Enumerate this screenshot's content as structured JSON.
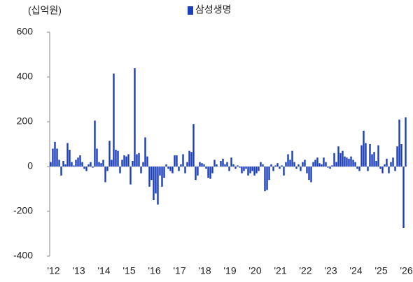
{
  "chart_data": {
    "type": "bar",
    "unit_label": "(십억원)",
    "series": [
      {
        "name": "삼성생명",
        "color": "#1b3fb8",
        "values": [
          20,
          80,
          110,
          80,
          30,
          -40,
          25,
          10,
          105,
          75,
          20,
          5,
          30,
          40,
          50,
          20,
          -10,
          -20,
          10,
          20,
          -5,
          205,
          80,
          20,
          15,
          30,
          -70,
          -20,
          115,
          30,
          415,
          75,
          70,
          -30,
          30,
          50,
          45,
          55,
          -80,
          25,
          440,
          55,
          60,
          -30,
          20,
          130,
          45,
          -90,
          -60,
          -150,
          -120,
          -170,
          -40,
          -90,
          -50,
          10,
          -10,
          -20,
          -30,
          50,
          50,
          -20,
          10,
          55,
          -30,
          20,
          70,
          65,
          190,
          -60,
          -40,
          20,
          15,
          10,
          -10,
          -50,
          -55,
          -30,
          30,
          10,
          0,
          25,
          35,
          10,
          20,
          -20,
          40,
          10,
          -10,
          5,
          -5,
          -30,
          -20,
          -10,
          -40,
          -30,
          -20,
          -40,
          -30,
          -20,
          20,
          10,
          -110,
          -105,
          -60,
          10,
          -20,
          5,
          15,
          -10,
          5,
          -40,
          20,
          55,
          30,
          70,
          20,
          -10,
          10,
          -20,
          20,
          30,
          -30,
          -60,
          -70,
          20,
          30,
          40,
          15,
          10,
          40,
          20,
          -5,
          -10,
          5,
          60,
          20,
          90,
          60,
          70,
          45,
          40,
          35,
          45,
          30,
          20,
          -10,
          -20,
          95,
          160,
          105,
          -20,
          100,
          55,
          65,
          25,
          95,
          -10,
          -30,
          10,
          35,
          -30,
          20,
          40,
          -20,
          90,
          210,
          100,
          -275,
          220
        ]
      }
    ],
    "categories": [
      "'12",
      null,
      null,
      null,
      null,
      null,
      null,
      null,
      null,
      null,
      null,
      null,
      "'13",
      null,
      null,
      null,
      null,
      null,
      null,
      null,
      null,
      null,
      null,
      null,
      "'14",
      null,
      null,
      null,
      null,
      null,
      null,
      null,
      null,
      null,
      null,
      null,
      "'15",
      null,
      null,
      null,
      null,
      null,
      null,
      null,
      null,
      null,
      null,
      null,
      "'16",
      null,
      null,
      null,
      null,
      null,
      null,
      null,
      null,
      null,
      null,
      null,
      "'17",
      null,
      null,
      null,
      null,
      null,
      null,
      null,
      null,
      null,
      null,
      null,
      "'18",
      null,
      null,
      null,
      null,
      null,
      null,
      null,
      null,
      null,
      null,
      null,
      "'19",
      null,
      null,
      null,
      null,
      null,
      null,
      null,
      null,
      null,
      null,
      null,
      "'20",
      null,
      null,
      null,
      null,
      null,
      null,
      null,
      null,
      null,
      null,
      null,
      "'21",
      null,
      null,
      null,
      null,
      null,
      null,
      null,
      null,
      null,
      null,
      null,
      "'22",
      null,
      null,
      null,
      null,
      null,
      null,
      null,
      null,
      null,
      null,
      null,
      "'23",
      null,
      null,
      null,
      null,
      null,
      null,
      null,
      null,
      null,
      null,
      null,
      "'24",
      null,
      null,
      null,
      null,
      null,
      null,
      null,
      null,
      null,
      null,
      null,
      "'25",
      null,
      null,
      null,
      null,
      null,
      null,
      null,
      null,
      null,
      null,
      null,
      "'26",
      null
    ],
    "ylim": [
      -400,
      600
    ],
    "yticks": [
      -400,
      -200,
      0,
      200,
      400,
      600
    ],
    "grid": false
  }
}
